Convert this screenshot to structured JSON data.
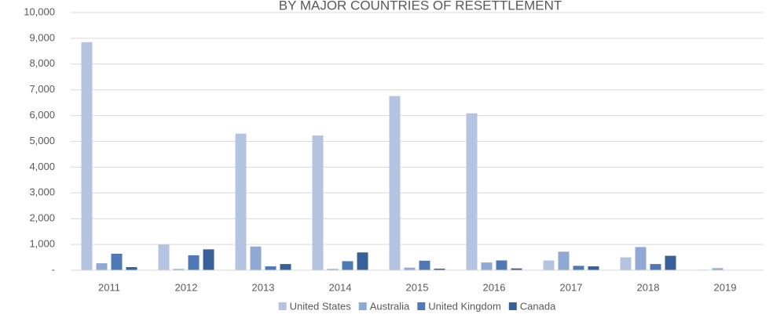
{
  "chart_data": {
    "type": "bar",
    "title": "BY MAJOR COUNTRIES OF RESETTLEMENT",
    "categories": [
      "2011",
      "2012",
      "2013",
      "2014",
      "2015",
      "2016",
      "2017",
      "2018",
      "2019"
    ],
    "series": [
      {
        "name": "United States",
        "color": "#b4c3e0",
        "values": [
          8850,
          1000,
          5300,
          5230,
          6760,
          6090,
          380,
          500,
          20
        ]
      },
      {
        "name": "Australia",
        "color": "#8fa9d4",
        "values": [
          270,
          50,
          920,
          50,
          100,
          300,
          720,
          900,
          80
        ]
      },
      {
        "name": "United Kingdom",
        "color": "#4f79b5",
        "values": [
          640,
          580,
          150,
          350,
          370,
          380,
          170,
          240,
          0
        ]
      },
      {
        "name": "Canada",
        "color": "#375f99",
        "values": [
          120,
          810,
          240,
          690,
          60,
          70,
          150,
          560,
          0
        ]
      }
    ],
    "ylim": [
      0,
      10000
    ],
    "yticks": [
      {
        "value": 0,
        "label": "-"
      },
      {
        "value": 1000,
        "label": "1,000"
      },
      {
        "value": 2000,
        "label": "2,000"
      },
      {
        "value": 3000,
        "label": "3,000"
      },
      {
        "value": 4000,
        "label": "4,000"
      },
      {
        "value": 5000,
        "label": "5,000"
      },
      {
        "value": 6000,
        "label": "6,000"
      },
      {
        "value": 7000,
        "label": "7,000"
      },
      {
        "value": 8000,
        "label": "8,000"
      },
      {
        "value": 9000,
        "label": "9,000"
      },
      {
        "value": 10000,
        "label": "10,000"
      }
    ],
    "grid": true,
    "legend": "bottom"
  }
}
